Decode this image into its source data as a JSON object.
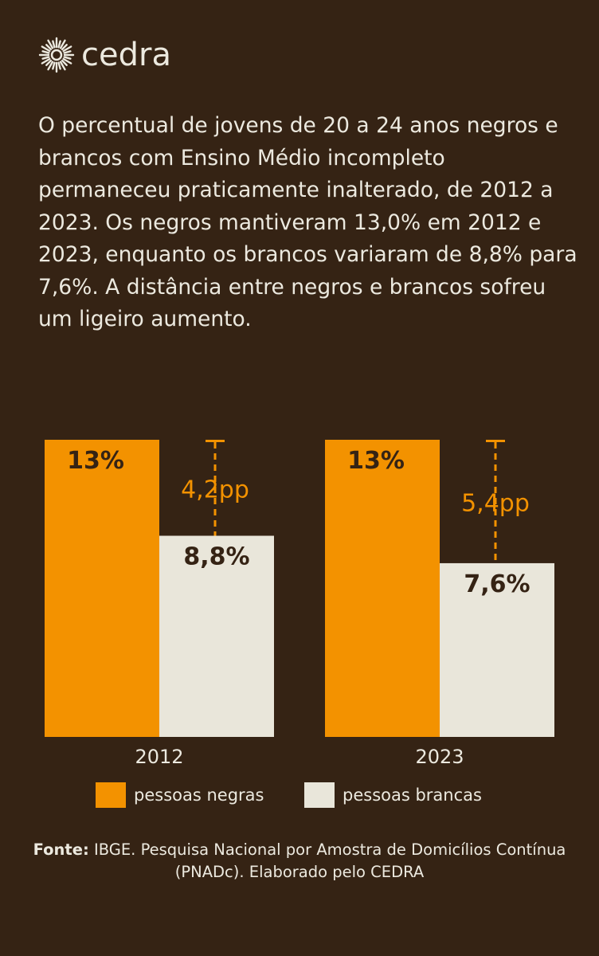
{
  "brand": {
    "name": "cedra",
    "icon": "sun-burst-icon"
  },
  "intro_text": "O percentual de jovens de 20 a 24 anos negros e brancos com Ensino Médio incompleto permaneceu praticamente inalterado, de 2012 a 2023. Os negros mantiveram 13,0% em 2012 e 2023, enquanto os brancos variaram de 8,8% para 7,6%. A distância entre negros e brancos sofreu um ligeiro aumento.",
  "colors": {
    "background": "#352314",
    "negras": "#F39200",
    "brancas": "#E9E6DA",
    "text": "#ECE9DF",
    "dark_text": "#352314"
  },
  "chart_data": {
    "type": "bar",
    "categories": [
      "2012",
      "2023"
    ],
    "series": [
      {
        "name": "pessoas negras",
        "values": [
          13.0,
          13.0
        ],
        "labels": [
          "13%",
          "13%"
        ]
      },
      {
        "name": "pessoas brancas",
        "values": [
          8.8,
          7.6
        ],
        "labels": [
          "8,8%",
          "7,6%"
        ]
      }
    ],
    "gap_labels": [
      "4,2pp",
      "5,4pp"
    ],
    "ylim": [
      0,
      13
    ],
    "grid": false,
    "legend_position": "bottom"
  },
  "legend": [
    {
      "label": "pessoas negras"
    },
    {
      "label": "pessoas brancas"
    }
  ],
  "source": {
    "label": "Fonte:",
    "text": " IBGE. Pesquisa Nacional por Amostra de Domicílios Contínua (PNADc). Elaborado pelo CEDRA"
  }
}
